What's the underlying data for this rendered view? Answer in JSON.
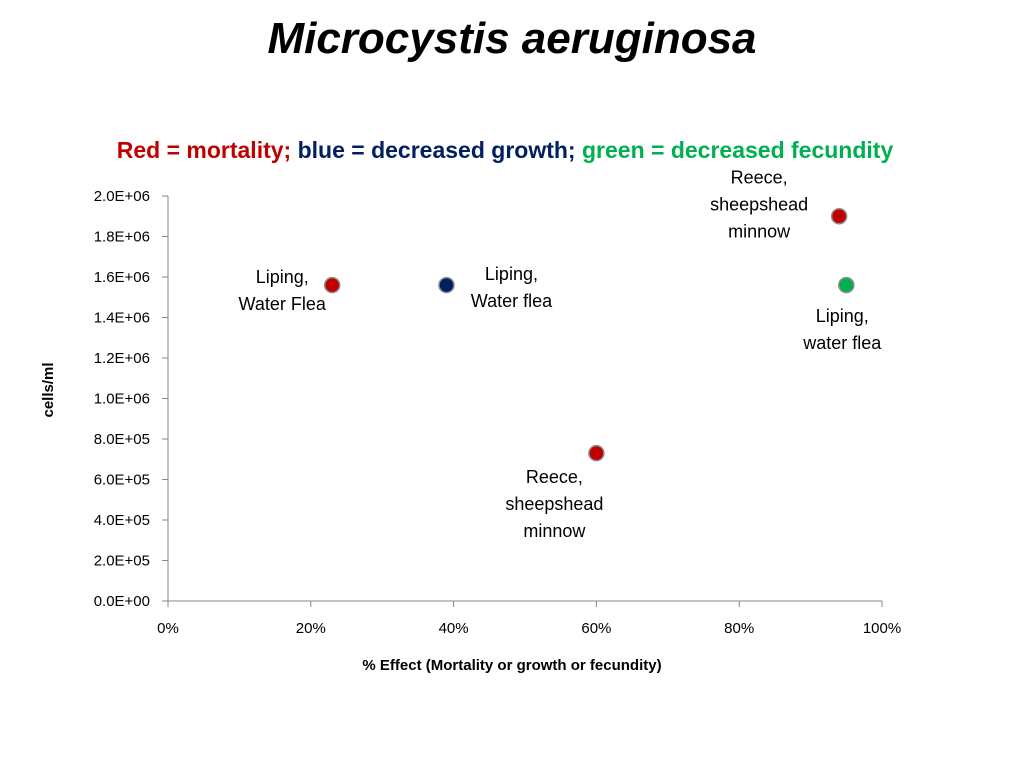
{
  "slide": {
    "title": "Microcystis aeruginosa",
    "legend_parts": [
      {
        "text": "Red = mortality; ",
        "color": "#c00000"
      },
      {
        "text": "blue = decreased growth; ",
        "color": "#002060"
      },
      {
        "text": "green = decreased fecundity",
        "color": "#00b050"
      }
    ]
  },
  "chart_data": {
    "type": "scatter",
    "xlabel": "% Effect (Mortality or growth or fecundity)",
    "ylabel": "cells/ml",
    "xlim": [
      0,
      1
    ],
    "ylim": [
      0,
      2000000
    ],
    "x_ticks": [
      {
        "value": 0,
        "label": "0%"
      },
      {
        "value": 0.2,
        "label": "20%"
      },
      {
        "value": 0.4,
        "label": "40%"
      },
      {
        "value": 0.6,
        "label": "60%"
      },
      {
        "value": 0.8,
        "label": "80%"
      },
      {
        "value": 1.0,
        "label": "100%"
      }
    ],
    "y_ticks": [
      {
        "value": 0,
        "label": "0.0E+00"
      },
      {
        "value": 200000,
        "label": "2.0E+05"
      },
      {
        "value": 400000,
        "label": "4.0E+05"
      },
      {
        "value": 600000,
        "label": "6.0E+05"
      },
      {
        "value": 800000,
        "label": "8.0E+05"
      },
      {
        "value": 1000000,
        "label": "1.0E+06"
      },
      {
        "value": 1200000,
        "label": "1.2E+06"
      },
      {
        "value": 1400000,
        "label": "1.4E+06"
      },
      {
        "value": 1600000,
        "label": "1.6E+06"
      },
      {
        "value": 1800000,
        "label": "1.8E+06"
      },
      {
        "value": 2000000,
        "label": "2.0E+06"
      }
    ],
    "grid": false,
    "points": [
      {
        "x": 0.23,
        "y": 1560000,
        "color": "#c00000",
        "label": [
          "Liping,",
          "Water Flea"
        ],
        "label_side": "left"
      },
      {
        "x": 0.39,
        "y": 1560000,
        "color": "#002060",
        "label": [
          "Liping,",
          "Water flea"
        ],
        "label_side": "right"
      },
      {
        "x": 0.6,
        "y": 730000,
        "color": "#c00000",
        "label": [
          "Reece,",
          "sheepshead",
          "minnow"
        ],
        "label_side": "below"
      },
      {
        "x": 0.94,
        "y": 1900000,
        "color": "#c00000",
        "label": [
          "Reece,",
          "sheepshead",
          "minnow"
        ],
        "label_side": "left"
      },
      {
        "x": 0.95,
        "y": 1560000,
        "color": "#00b050",
        "label": [
          "Liping,",
          "water flea"
        ],
        "label_side": "below"
      }
    ]
  }
}
